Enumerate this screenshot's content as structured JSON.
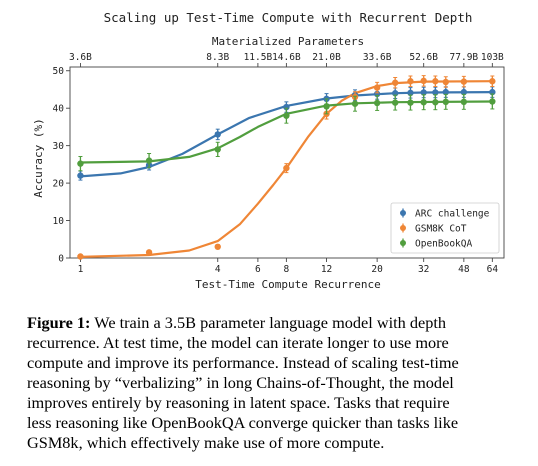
{
  "chart_data": {
    "type": "line",
    "title": "Scaling up Test-Time Compute with Recurrent Depth",
    "top_axis_label": "Materialized Parameters",
    "top_ticks": [
      {
        "r": 1,
        "label": "3.6B"
      },
      {
        "r": 4,
        "label": "8.3B"
      },
      {
        "r": 6,
        "label": "11.5B"
      },
      {
        "r": 8,
        "label": "14.6B"
      },
      {
        "r": 12,
        "label": "21.0B"
      },
      {
        "r": 20,
        "label": "33.6B"
      },
      {
        "r": 32,
        "label": "52.6B"
      },
      {
        "r": 48,
        "label": "77.9B"
      },
      {
        "r": 64,
        "label": "103B"
      }
    ],
    "xlabel": "Test-Time Compute Recurrence",
    "ylabel": "Accuracy (%)",
    "xscale": "log",
    "xlim": [
      0.9,
      72
    ],
    "ylim": [
      0,
      51
    ],
    "x_ticks": [
      1,
      4,
      6,
      8,
      12,
      20,
      32,
      48,
      64
    ],
    "y_ticks": [
      0,
      10,
      20,
      30,
      40,
      50
    ],
    "grid": true,
    "legend_position": "bottom-right",
    "series": [
      {
        "name": "ARC challenge",
        "color": "#3b76af",
        "points": [
          {
            "x": 1,
            "y": 22.0,
            "err": 1.2
          },
          {
            "x": 2,
            "y": 24.8,
            "err": 1.3
          },
          {
            "x": 4,
            "y": 33.0,
            "err": 1.4
          },
          {
            "x": 8,
            "y": 40.3,
            "err": 1.4
          },
          {
            "x": 12,
            "y": 42.5,
            "err": 1.4
          },
          {
            "x": 16,
            "y": 43.5,
            "err": 1.4
          },
          {
            "x": 20,
            "y": 43.8,
            "err": 1.4
          },
          {
            "x": 24,
            "y": 44.0,
            "err": 1.4
          },
          {
            "x": 28,
            "y": 44.1,
            "err": 1.4
          },
          {
            "x": 32,
            "y": 44.2,
            "err": 1.4
          },
          {
            "x": 36,
            "y": 44.2,
            "err": 1.4
          },
          {
            "x": 40,
            "y": 44.3,
            "err": 1.4
          },
          {
            "x": 48,
            "y": 44.3,
            "err": 1.4
          },
          {
            "x": 64,
            "y": 44.3,
            "err": 1.4
          }
        ],
        "curve": [
          [
            1,
            21.8
          ],
          [
            1.5,
            22.6
          ],
          [
            2,
            24.3
          ],
          [
            2.8,
            27.8
          ],
          [
            4,
            33.0
          ],
          [
            5.5,
            37.4
          ],
          [
            8,
            40.6
          ],
          [
            12,
            42.6
          ],
          [
            16,
            43.4
          ],
          [
            24,
            44.0
          ],
          [
            32,
            44.2
          ],
          [
            64,
            44.3
          ]
        ]
      },
      {
        "name": "GSM8K CoT",
        "color": "#ef8636",
        "points": [
          {
            "x": 1,
            "y": 0.4,
            "err": 0.2
          },
          {
            "x": 2,
            "y": 1.5,
            "err": 0.5
          },
          {
            "x": 4,
            "y": 3.0,
            "err": 0.6
          },
          {
            "x": 8,
            "y": 24.0,
            "err": 1.2
          },
          {
            "x": 12,
            "y": 38.5,
            "err": 1.4
          },
          {
            "x": 16,
            "y": 43.0,
            "err": 1.4
          },
          {
            "x": 20,
            "y": 45.5,
            "err": 1.4
          },
          {
            "x": 24,
            "y": 46.8,
            "err": 1.4
          },
          {
            "x": 28,
            "y": 47.2,
            "err": 1.4
          },
          {
            "x": 32,
            "y": 47.3,
            "err": 1.4
          },
          {
            "x": 36,
            "y": 47.2,
            "err": 1.4
          },
          {
            "x": 40,
            "y": 47.0,
            "err": 1.4
          },
          {
            "x": 48,
            "y": 47.1,
            "err": 1.4
          },
          {
            "x": 64,
            "y": 47.2,
            "err": 1.4
          }
        ],
        "curve": [
          [
            1,
            0.3
          ],
          [
            2,
            0.8
          ],
          [
            3,
            2.0
          ],
          [
            4,
            4.5
          ],
          [
            5,
            9.0
          ],
          [
            6,
            14.5
          ],
          [
            7,
            19.5
          ],
          [
            8,
            24.0
          ],
          [
            10,
            32.5
          ],
          [
            12,
            38.5
          ],
          [
            14,
            42.0
          ],
          [
            16,
            44.0
          ],
          [
            20,
            45.9
          ],
          [
            24,
            46.7
          ],
          [
            32,
            47.1
          ],
          [
            64,
            47.2
          ]
        ]
      },
      {
        "name": "OpenBookQA",
        "color": "#519e3e",
        "points": [
          {
            "x": 1,
            "y": 25.2,
            "err": 1.9
          },
          {
            "x": 2,
            "y": 26.0,
            "err": 1.9
          },
          {
            "x": 4,
            "y": 29.0,
            "err": 1.9
          },
          {
            "x": 8,
            "y": 38.0,
            "err": 2.0
          },
          {
            "x": 12,
            "y": 40.5,
            "err": 2.0
          },
          {
            "x": 16,
            "y": 41.2,
            "err": 2.0
          },
          {
            "x": 20,
            "y": 41.4,
            "err": 2.0
          },
          {
            "x": 24,
            "y": 41.5,
            "err": 2.0
          },
          {
            "x": 28,
            "y": 41.5,
            "err": 2.0
          },
          {
            "x": 32,
            "y": 41.6,
            "err": 2.0
          },
          {
            "x": 36,
            "y": 41.6,
            "err": 2.0
          },
          {
            "x": 40,
            "y": 41.7,
            "err": 2.0
          },
          {
            "x": 48,
            "y": 41.7,
            "err": 2.0
          },
          {
            "x": 64,
            "y": 41.8,
            "err": 2.0
          }
        ],
        "curve": [
          [
            1,
            25.5
          ],
          [
            2,
            25.8
          ],
          [
            3,
            27.0
          ],
          [
            4,
            29.3
          ],
          [
            5,
            32.3
          ],
          [
            6,
            35.0
          ],
          [
            8,
            38.5
          ],
          [
            12,
            40.7
          ],
          [
            16,
            41.3
          ],
          [
            24,
            41.6
          ],
          [
            64,
            41.8
          ]
        ]
      }
    ]
  },
  "caption": {
    "label": "Figure 1:",
    "lines": [
      "We train a 3.5B parameter language model with depth",
      "recurrence. At test time, the model can iterate longer to use more",
      "compute and improve its performance. Instead of scaling test-time",
      "reasoning by “verbalizing” in long Chains-of-Thought, the model",
      "improves entirely by reasoning in latent space. Tasks that require",
      "less reasoning like OpenBookQA converge quicker than tasks like",
      "GSM8k, which effectively make use of more compute."
    ]
  }
}
